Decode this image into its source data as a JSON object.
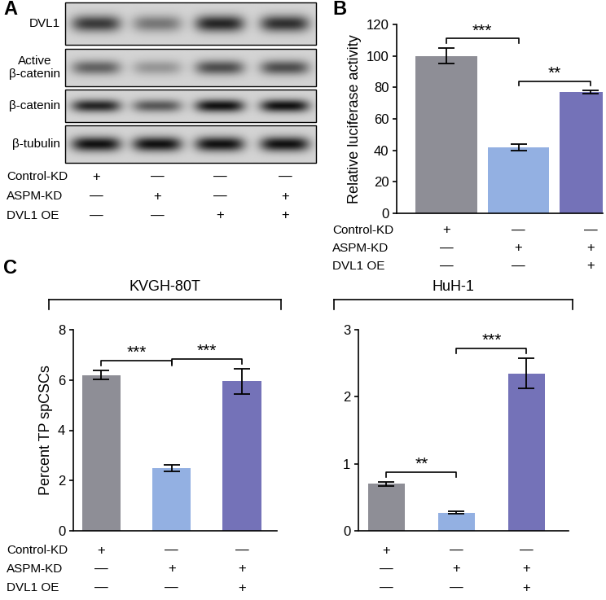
{
  "chart_data": [
    {
      "type": "western_blot",
      "panel": "A",
      "bands": [
        {
          "name": "DVL1",
          "values": [
            0.75,
            0.45,
            0.85,
            0.8
          ]
        },
        {
          "name": "Active\nβ-catenin",
          "values": [
            0.55,
            0.3,
            0.65,
            0.65
          ]
        },
        {
          "name": "β-catenin",
          "values": [
            0.85,
            0.6,
            0.95,
            0.95
          ]
        },
        {
          "name": "β-tubulin",
          "values": [
            0.95,
            0.95,
            0.95,
            0.95
          ]
        }
      ],
      "conditions": [
        {
          "name": "Control-KD",
          "marks": [
            "+",
            "—",
            "—",
            "—"
          ]
        },
        {
          "name": "ASPM-KD",
          "marks": [
            "—",
            "+",
            "—",
            "+"
          ]
        },
        {
          "name": "DVL1 OE",
          "marks": [
            "—",
            "—",
            "+",
            "+"
          ]
        }
      ]
    },
    {
      "type": "bar",
      "panel": "B",
      "ylabel": "Relative luciferase activity",
      "categories": [
        null,
        null,
        null
      ],
      "values": [
        100,
        42,
        77
      ],
      "errors": [
        5,
        2,
        1
      ],
      "colors": [
        "#8e8e96",
        "#93b0e2",
        "#7472b8"
      ],
      "ylim": [
        0,
        120
      ],
      "yticks": [
        0,
        20,
        40,
        60,
        80,
        100,
        120
      ],
      "significance": [
        {
          "pair": [
            0,
            1
          ],
          "label": "***"
        },
        {
          "pair": [
            1,
            2
          ],
          "label": "**"
        }
      ],
      "conditions": [
        {
          "name": "Control-KD",
          "marks": [
            "+",
            "—",
            "—"
          ]
        },
        {
          "name": "ASPM-KD",
          "marks": [
            "—",
            "+",
            "+"
          ]
        },
        {
          "name": "DVL1 OE",
          "marks": [
            "—",
            "—",
            "+"
          ]
        }
      ]
    },
    {
      "type": "bar",
      "panel": "C",
      "title": "KVGH-80T",
      "ylabel": "Percent TP spCSCs",
      "categories": [
        null,
        null,
        null
      ],
      "values": [
        6.2,
        2.5,
        5.95
      ],
      "errors": [
        0.18,
        0.12,
        0.5
      ],
      "colors": [
        "#8e8e96",
        "#93b0e2",
        "#7472b8"
      ],
      "ylim": [
        0,
        8
      ],
      "yticks": [
        0,
        2,
        4,
        6,
        8
      ],
      "significance": [
        {
          "pair": [
            0,
            1
          ],
          "label": "***"
        },
        {
          "pair": [
            1,
            2
          ],
          "label": "***"
        }
      ],
      "conditions": [
        {
          "name": "Control-KD",
          "marks": [
            "+",
            "—",
            "—"
          ]
        },
        {
          "name": "ASPM-KD",
          "marks": [
            "—",
            "+",
            "+"
          ]
        },
        {
          "name": "DVL1 OE",
          "marks": [
            "—",
            "—",
            "+"
          ]
        }
      ]
    },
    {
      "type": "bar",
      "title": "HuH-1",
      "categories": [
        null,
        null,
        null
      ],
      "values": [
        0.7,
        0.27,
        2.35
      ],
      "errors": [
        0.03,
        0.02,
        0.22
      ],
      "colors": [
        "#8e8e96",
        "#93b0e2",
        "#7472b8"
      ],
      "ylim": [
        0,
        3
      ],
      "yticks": [
        0,
        1,
        2,
        3
      ],
      "significance": [
        {
          "pair": [
            0,
            1
          ],
          "label": "**"
        },
        {
          "pair": [
            1,
            2
          ],
          "label": "***"
        }
      ],
      "conditions": [
        {
          "marks": [
            "+",
            "—",
            "—"
          ]
        },
        {
          "marks": [
            "—",
            "+",
            "+"
          ]
        },
        {
          "marks": [
            "—",
            "—",
            "+"
          ]
        }
      ]
    }
  ]
}
